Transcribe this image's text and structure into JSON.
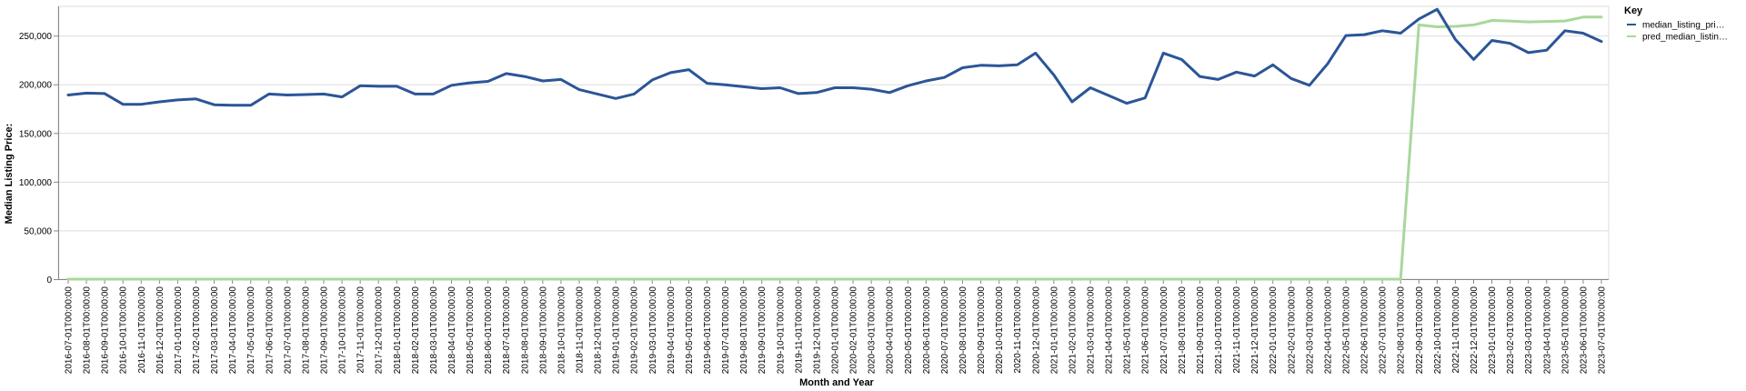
{
  "chart_data": {
    "type": "line",
    "xlabel": "Month and Year",
    "ylabel": "Median Listing Price:",
    "ylim": [
      0,
      280000
    ],
    "yticks": [
      0,
      50000,
      100000,
      150000,
      200000,
      250000
    ],
    "ytick_labels": [
      "0",
      "50,000",
      "100,000",
      "150,000",
      "200,000",
      "250,000"
    ],
    "grid": true,
    "legend_position": "top-right",
    "legend_title": "Key",
    "x": [
      "2016-07-01T00:00:00",
      "2016-08-01T00:00:00",
      "2016-09-01T00:00:00",
      "2016-10-01T00:00:00",
      "2016-11-01T00:00:00",
      "2016-12-01T00:00:00",
      "2017-01-01T00:00:00",
      "2017-02-01T00:00:00",
      "2017-03-01T00:00:00",
      "2017-04-01T00:00:00",
      "2017-05-01T00:00:00",
      "2017-06-01T00:00:00",
      "2017-07-01T00:00:00",
      "2017-08-01T00:00:00",
      "2017-09-01T00:00:00",
      "2017-10-01T00:00:00",
      "2017-11-01T00:00:00",
      "2017-12-01T00:00:00",
      "2018-01-01T00:00:00",
      "2018-02-01T00:00:00",
      "2018-03-01T00:00:00",
      "2018-04-01T00:00:00",
      "2018-05-01T00:00:00",
      "2018-06-01T00:00:00",
      "2018-07-01T00:00:00",
      "2018-08-01T00:00:00",
      "2018-09-01T00:00:00",
      "2018-10-01T00:00:00",
      "2018-11-01T00:00:00",
      "2018-12-01T00:00:00",
      "2019-01-01T00:00:00",
      "2019-02-01T00:00:00",
      "2019-03-01T00:00:00",
      "2019-04-01T00:00:00",
      "2019-05-01T00:00:00",
      "2019-06-01T00:00:00",
      "2019-07-01T00:00:00",
      "2019-08-01T00:00:00",
      "2019-09-01T00:00:00",
      "2019-10-01T00:00:00",
      "2019-11-01T00:00:00",
      "2019-12-01T00:00:00",
      "2020-01-01T00:00:00",
      "2020-02-01T00:00:00",
      "2020-03-01T00:00:00",
      "2020-04-01T00:00:00",
      "2020-05-01T00:00:00",
      "2020-06-01T00:00:00",
      "2020-07-01T00:00:00",
      "2020-08-01T00:00:00",
      "2020-09-01T00:00:00",
      "2020-10-01T00:00:00",
      "2020-11-01T00:00:00",
      "2020-12-01T00:00:00",
      "2021-01-01T00:00:00",
      "2021-02-01T00:00:00",
      "2021-03-01T00:00:00",
      "2021-04-01T00:00:00",
      "2021-05-01T00:00:00",
      "2021-06-01T00:00:00",
      "2021-07-01T00:00:00",
      "2021-08-01T00:00:00",
      "2021-09-01T00:00:00",
      "2021-10-01T00:00:00",
      "2021-11-01T00:00:00",
      "2021-12-01T00:00:00",
      "2022-01-01T00:00:00",
      "2022-02-01T00:00:00",
      "2022-03-01T00:00:00",
      "2022-04-01T00:00:00",
      "2022-05-01T00:00:00",
      "2022-06-01T00:00:00",
      "2022-07-01T00:00:00",
      "2022-08-01T00:00:00",
      "2022-09-01T00:00:00",
      "2022-10-01T00:00:00",
      "2022-11-01T00:00:00",
      "2022-12-01T00:00:00",
      "2023-01-01T00:00:00",
      "2023-02-01T00:00:00",
      "2023-03-01T00:00:00",
      "2023-04-01T00:00:00",
      "2023-05-01T00:00:00",
      "2023-06-01T00:00:00",
      "2023-07-01T00:00:00"
    ],
    "series": [
      {
        "name": "median_listing_pri…",
        "color": "#2b5597",
        "values": [
          189000,
          191000,
          190500,
          179500,
          179500,
          182000,
          184000,
          185000,
          179000,
          178500,
          178500,
          190000,
          189000,
          189500,
          190000,
          187000,
          198500,
          198000,
          198000,
          190000,
          190000,
          199000,
          201500,
          203000,
          211000,
          208000,
          203500,
          205000,
          194500,
          190000,
          185500,
          190000,
          204500,
          212000,
          215000,
          201000,
          199500,
          197500,
          195500,
          196500,
          190500,
          191500,
          196500,
          196500,
          195000,
          191500,
          198500,
          203500,
          207000,
          217000,
          219500,
          219000,
          220000,
          232000,
          209500,
          182000,
          196500,
          188500,
          180500,
          186000,
          232000,
          225500,
          208000,
          205000,
          212500,
          208500,
          220000,
          206000,
          199000,
          221000,
          250000,
          251000,
          255000,
          252500,
          267000,
          277000,
          246000,
          225500,
          245000,
          242000,
          232500,
          235000,
          255000,
          252500,
          244000
        ]
      },
      {
        "name": "pred_median_listin…",
        "color": "#a8d89b",
        "values": [
          0,
          0,
          0,
          0,
          0,
          0,
          0,
          0,
          0,
          0,
          0,
          0,
          0,
          0,
          0,
          0,
          0,
          0,
          0,
          0,
          0,
          0,
          0,
          0,
          0,
          0,
          0,
          0,
          0,
          0,
          0,
          0,
          0,
          0,
          0,
          0,
          0,
          0,
          0,
          0,
          0,
          0,
          0,
          0,
          0,
          0,
          0,
          0,
          0,
          0,
          0,
          0,
          0,
          0,
          0,
          0,
          0,
          0,
          0,
          0,
          0,
          0,
          0,
          0,
          0,
          0,
          0,
          0,
          0,
          0,
          0,
          0,
          0,
          0,
          261000,
          259000,
          259500,
          261000,
          265500,
          265000,
          264000,
          264500,
          265000,
          269000,
          269000
        ]
      }
    ]
  }
}
